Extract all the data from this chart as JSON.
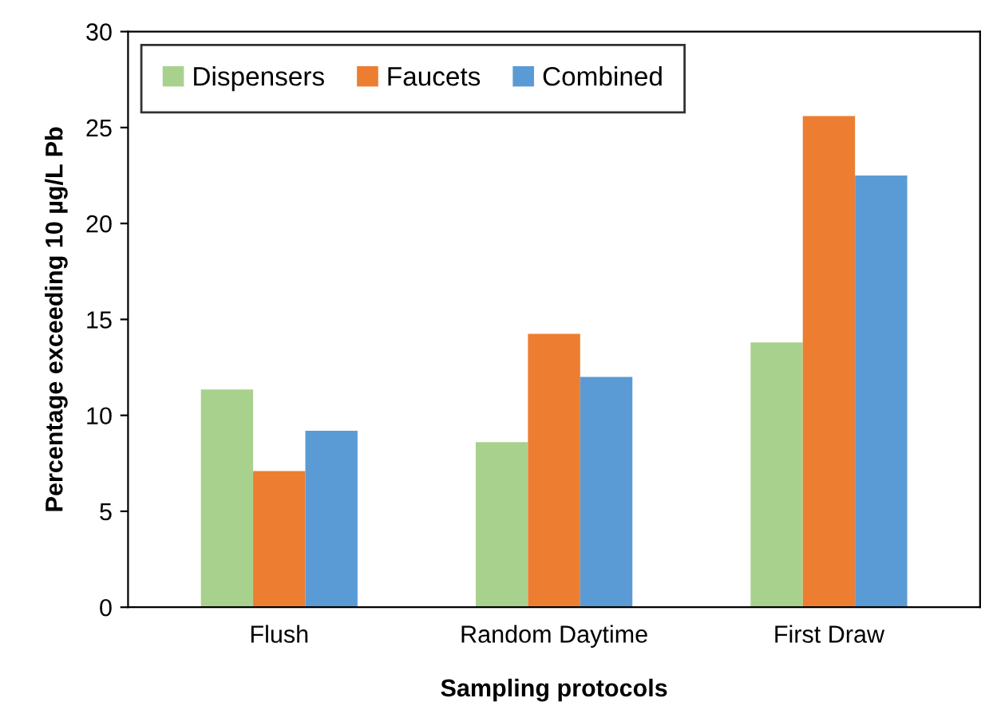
{
  "chart_data": {
    "type": "bar",
    "xlabel": "Sampling protocols",
    "ylabel": "Percentage exceeding 10 µg/L Pb",
    "categories": [
      "Flush",
      "Random Daytime",
      "First Draw"
    ],
    "series": [
      {
        "name": "Dispensers",
        "color": "#a9d18e",
        "values": [
          11.35,
          8.6,
          13.8
        ]
      },
      {
        "name": "Faucets",
        "color": "#ed7d31",
        "values": [
          7.1,
          14.25,
          25.6
        ]
      },
      {
        "name": "Combined",
        "color": "#5b9bd5",
        "values": [
          9.2,
          12.0,
          22.5
        ]
      }
    ],
    "ylim": [
      0,
      30
    ],
    "yticks": [
      0,
      5,
      10,
      15,
      20,
      25,
      30
    ],
    "grid": false,
    "legend": "top left"
  }
}
